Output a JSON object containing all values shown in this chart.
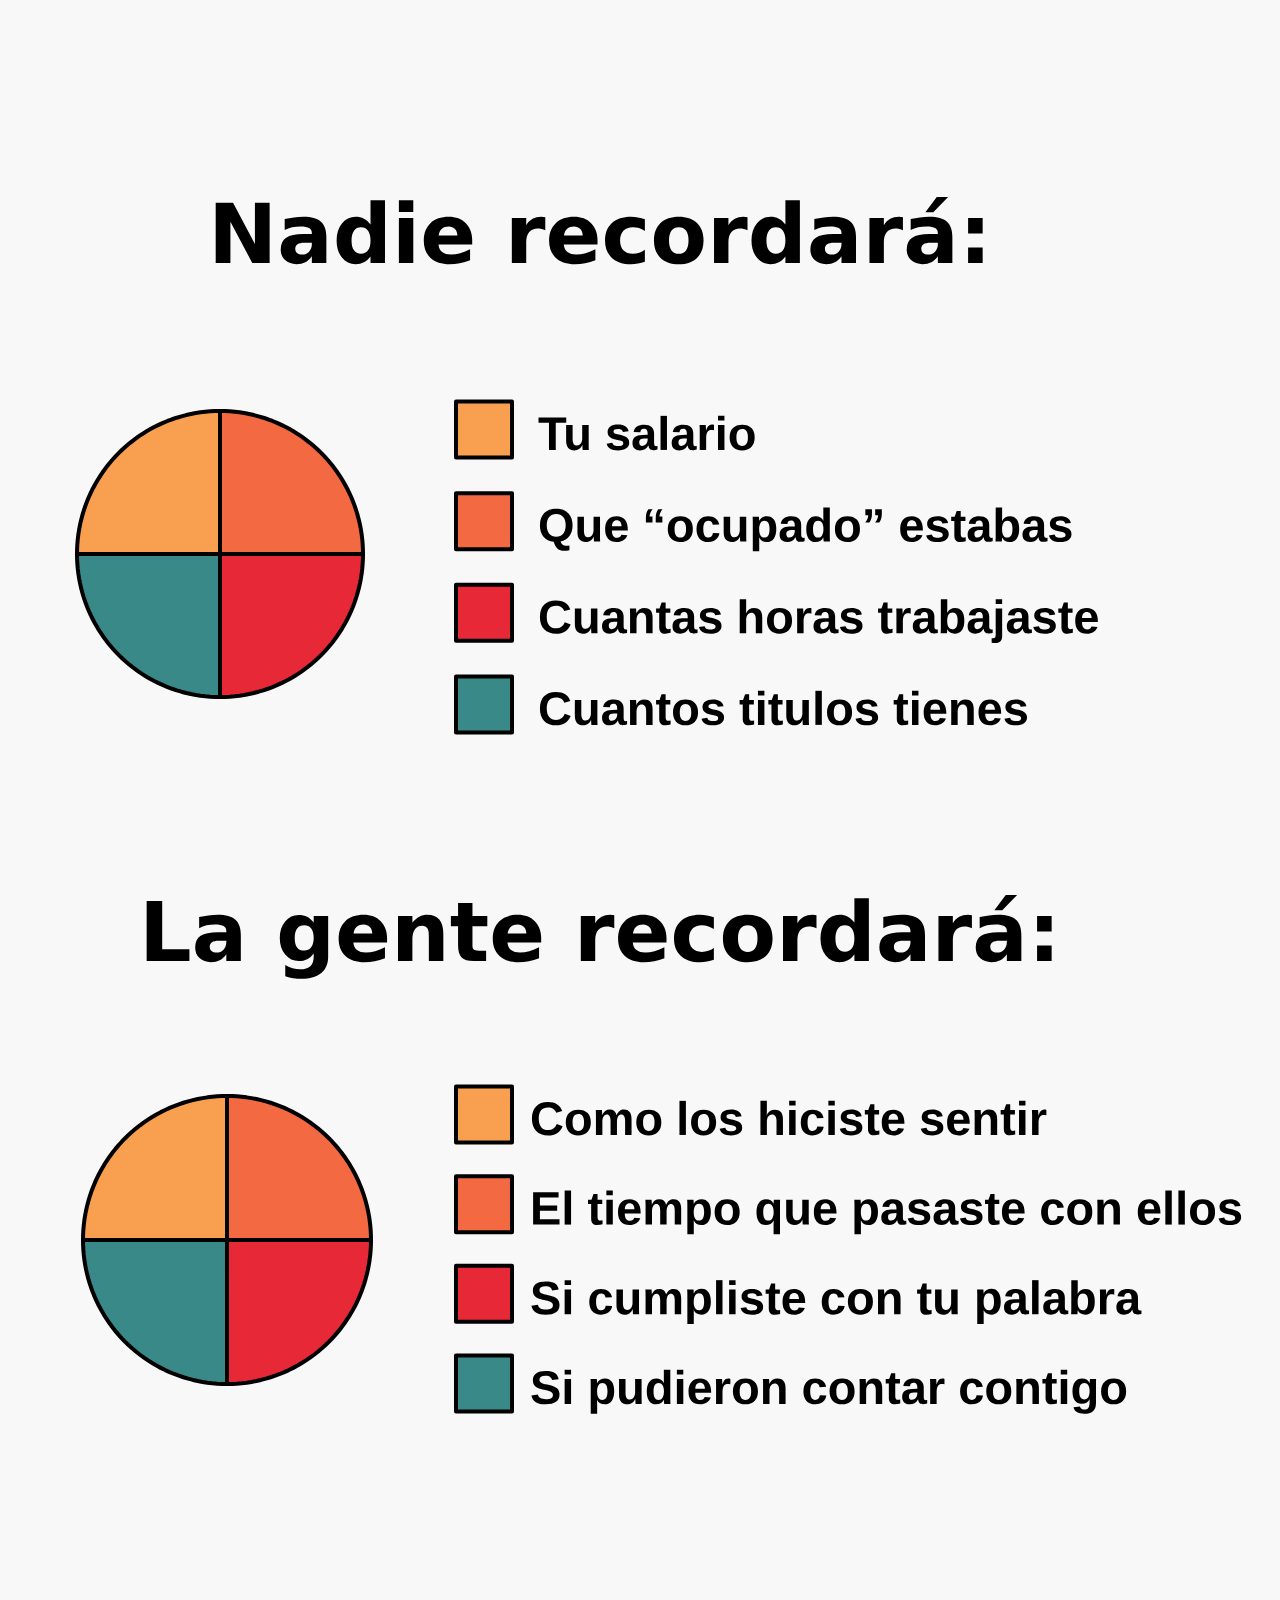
{
  "chart_data": [
    {
      "type": "pie",
      "title": "Nadie recordará:",
      "categories": [
        "Tu salario",
        "Que “ocupado” estabas",
        "Cuantas horas trabajaste",
        "Cuantos titulos tienes"
      ],
      "values": [
        25,
        25,
        25,
        25
      ],
      "colors": [
        "#f9a050",
        "#f36941",
        "#e72837",
        "#3a8989"
      ],
      "legend": "right"
    },
    {
      "type": "pie",
      "title": "La gente recordará:",
      "categories": [
        "Como los hiciste sentir",
        "El tiempo que pasaste con ellos",
        "Si cumpliste con tu palabra",
        "Si pudieron contar contigo"
      ],
      "values": [
        25,
        25,
        25,
        25
      ],
      "colors": [
        "#f9a050",
        "#f36941",
        "#e72837",
        "#3a8989"
      ],
      "legend": "right"
    }
  ]
}
